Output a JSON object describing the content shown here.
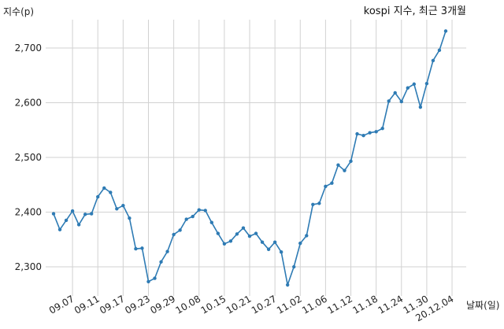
{
  "chart_data": {
    "type": "line",
    "title": "kospi 지수, 최근 3개월",
    "ylabel": "지수(p)",
    "xlabel": "날짜(일)",
    "ylim": [
      2250,
      2760
    ],
    "yticks": [
      2300,
      2400,
      2500,
      2600,
      2700
    ],
    "ytick_labels": [
      "2,300",
      "2,400",
      "2,500",
      "2,600",
      "2,700"
    ],
    "grid": true,
    "color": "#2e7bb4",
    "x_tick_labels": [
      "09.07",
      "09.11",
      "09.17",
      "09.23",
      "09.29",
      "10.08",
      "10.15",
      "10.21",
      "10.27",
      "11.02",
      "11.06",
      "11.12",
      "11.18",
      "11.24",
      "11.30",
      "20.12.04"
    ],
    "x_tick_index": [
      3,
      7,
      11,
      15,
      19,
      23,
      27,
      31,
      35,
      39,
      43,
      47,
      51,
      55,
      59,
      63
    ],
    "series": [
      {
        "values": [
          2397,
          2368,
          2385,
          2402,
          2377,
          2396,
          2397,
          2428,
          2444,
          2436,
          2406,
          2412,
          2389,
          2333,
          2334,
          2273,
          2279,
          2309,
          2328,
          2359,
          2367,
          2387,
          2392,
          2404,
          2403,
          2381,
          2361,
          2342,
          2347,
          2360,
          2371,
          2356,
          2361,
          2345,
          2332,
          2345,
          2327,
          2267,
          2300,
          2343,
          2357,
          2414,
          2416,
          2447,
          2453,
          2486,
          2476,
          2493,
          2543,
          2540,
          2545,
          2547,
          2553,
          2603,
          2618,
          2602,
          2627,
          2634,
          2592,
          2635,
          2677,
          2696,
          2731
        ]
      }
    ]
  }
}
